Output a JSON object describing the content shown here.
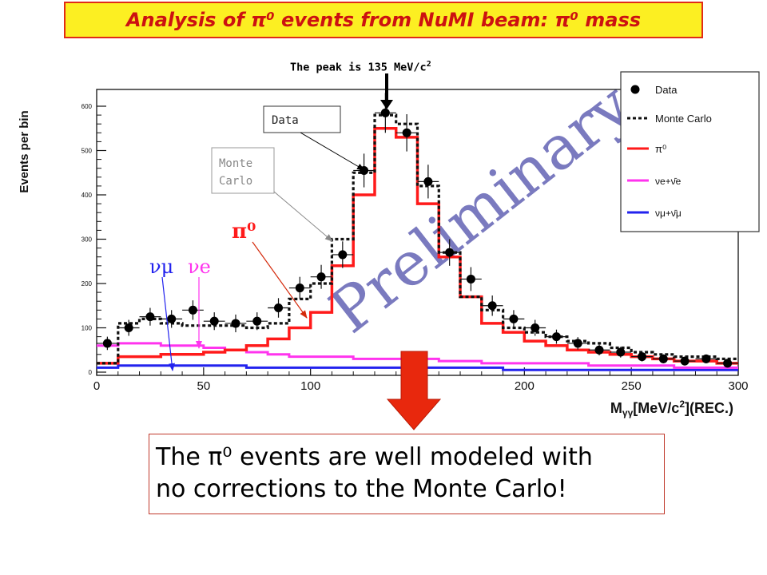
{
  "slide": {
    "title": "Analysis of π⁰ events from NuMI beam: π⁰ mass",
    "peak_note": "The peak is 135 MeV/c",
    "peak_note_sup": "2",
    "caption_line1": "The π⁰ events are well modeled with",
    "caption_line2": "no corrections to the Monte Carlo!"
  },
  "annotations": {
    "data": "Data",
    "mc_line1": "Monte",
    "mc_line2": "Carlo",
    "pi0": "π⁰",
    "numu": "νμ",
    "nue": "νe",
    "watermark": "Preliminary"
  },
  "colors": {
    "title_bg": "#fcef22",
    "title_text": "#cc1111",
    "pi0": "#ff1a1a",
    "nue": "#ff33ee",
    "numu": "#2222ee",
    "watermark": "#5959b0",
    "arrow": "#e8280d"
  },
  "chart_data": {
    "type": "line",
    "xlabel": "M",
    "xlabel_sub": "γγ",
    "xlabel_rest": "[MeV/c",
    "xlabel_sup": "2",
    "xlabel_end": "](REC.)",
    "ylabel": "Events per bin",
    "xlim": [
      0,
      300
    ],
    "ylim": [
      0,
      630
    ],
    "x_ticks": [
      0,
      50,
      100,
      150,
      200,
      250,
      300
    ],
    "x_tick_labels": [
      "0",
      "50",
      "100",
      "150",
      "200",
      "250",
      "300"
    ],
    "y_ticks": [
      0,
      100,
      200,
      300,
      400,
      500,
      600
    ],
    "bin_edges": [
      0,
      10,
      20,
      30,
      40,
      50,
      60,
      70,
      80,
      90,
      100,
      110,
      120,
      130,
      140,
      150,
      160,
      170,
      180,
      190,
      200,
      210,
      220,
      230,
      240,
      250,
      260,
      270,
      280,
      290,
      300
    ],
    "legend": {
      "position": "top-right",
      "entries": [
        {
          "label": "Data",
          "style": "marker"
        },
        {
          "label": "Monte Carlo",
          "style": "dotted"
        },
        {
          "label": "π⁰",
          "style": "line"
        },
        {
          "label": "νe+ν̄e",
          "style": "line"
        },
        {
          "label": "νμ+ν̄μ",
          "style": "line"
        }
      ]
    },
    "series": [
      {
        "name": "Data",
        "kind": "points",
        "x": [
          5,
          15,
          25,
          35,
          45,
          55,
          65,
          75,
          85,
          95,
          105,
          115,
          125,
          135,
          145,
          155,
          165,
          175,
          185,
          195,
          205,
          215,
          225,
          235,
          245,
          255,
          265,
          275,
          285,
          295
        ],
        "values": [
          65,
          100,
          125,
          120,
          140,
          115,
          110,
          115,
          145,
          190,
          215,
          265,
          455,
          585,
          540,
          430,
          270,
          210,
          150,
          120,
          100,
          80,
          65,
          50,
          45,
          35,
          30,
          25,
          30,
          20
        ],
        "errors": [
          15,
          18,
          20,
          20,
          22,
          20,
          20,
          20,
          22,
          25,
          27,
          30,
          38,
          45,
          42,
          38,
          30,
          27,
          23,
          20,
          18,
          16,
          14,
          12,
          12,
          11,
          10,
          10,
          10,
          9
        ]
      },
      {
        "name": "Monte Carlo",
        "kind": "dotted",
        "values": [
          20,
          110,
          120,
          110,
          105,
          105,
          105,
          100,
          110,
          165,
          200,
          300,
          450,
          580,
          560,
          420,
          270,
          170,
          140,
          100,
          90,
          80,
          70,
          65,
          55,
          45,
          40,
          35,
          35,
          30
        ]
      },
      {
        "name": "π⁰",
        "kind": "line",
        "values": [
          20,
          35,
          35,
          40,
          40,
          45,
          50,
          60,
          75,
          100,
          135,
          240,
          400,
          550,
          530,
          380,
          260,
          170,
          110,
          90,
          70,
          60,
          50,
          45,
          40,
          35,
          30,
          25,
          25,
          20
        ]
      },
      {
        "name": "νe+ν̄e",
        "kind": "line",
        "values": [
          60,
          65,
          65,
          60,
          60,
          55,
          50,
          45,
          40,
          35,
          35,
          35,
          30,
          30,
          30,
          30,
          25,
          25,
          20,
          20,
          20,
          20,
          20,
          15,
          15,
          15,
          15,
          10,
          10,
          10
        ]
      },
      {
        "name": "νμ+ν̄μ",
        "kind": "line",
        "values": [
          10,
          15,
          15,
          15,
          15,
          15,
          15,
          10,
          10,
          10,
          10,
          10,
          10,
          10,
          10,
          10,
          10,
          10,
          10,
          5,
          5,
          5,
          5,
          5,
          5,
          5,
          5,
          5,
          5,
          5
        ]
      }
    ]
  }
}
